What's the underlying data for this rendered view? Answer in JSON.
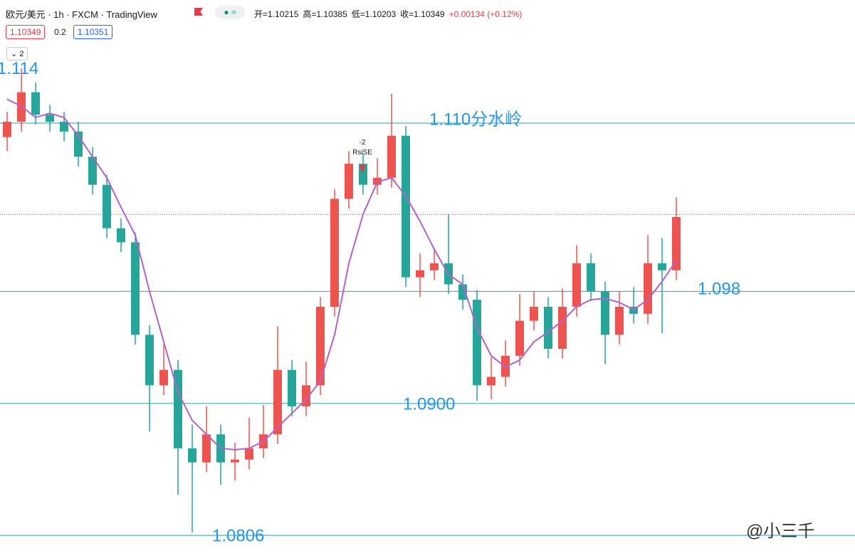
{
  "header": {
    "symbol": "欧元/美元 · 1h · FXCM · TradingView",
    "ohlc": [
      "开=1.10215",
      "高=1.10385",
      "低=1.10203",
      "收=1.10349",
      "+0.00134 (+0.12%)"
    ],
    "bid": "1.10349",
    "spread": "0.2",
    "ask": "1.10351",
    "layers": "2"
  },
  "watermark": "@小三千",
  "chart_data": {
    "type": "candlestick",
    "ylim": [
      1.07898,
      1.11878
    ],
    "up_color": "#ef5350",
    "down_color": "#26a69a",
    "ma_color": "#b660cd",
    "open": [
      1.109,
      1.1101,
      1.1122,
      1.1106,
      1.1101,
      1.1094,
      1.1076,
      1.1056,
      1.1025,
      1.1015,
      1.0949,
      1.0913,
      1.0924,
      1.0868,
      1.0858,
      1.0878,
      1.0858,
      1.086,
      1.0868,
      1.0878,
      1.0924,
      1.0898,
      1.0913,
      1.0969,
      1.1046,
      1.1071,
      1.1056,
      1.1061,
      1.1091,
      1.099,
      1.0995,
      1.1,
      1.0985,
      1.0974,
      1.0913,
      1.0919,
      1.0934,
      1.0959,
      1.0969,
      1.0939,
      1.0969,
      1.1,
      1.098,
      1.0949,
      1.0969,
      1.0964,
      1.1,
      1.0995
    ],
    "high": [
      1.1108,
      1.1139,
      1.1129,
      1.1113,
      1.1108,
      1.1101,
      1.1083,
      1.1063,
      1.1032,
      1.1022,
      1.0956,
      1.0942,
      1.0931,
      1.0885,
      1.0898,
      1.0885,
      1.0872,
      1.089,
      1.0899,
      1.0955,
      1.0931,
      1.093,
      1.0976,
      1.1053,
      1.108,
      1.1078,
      1.1075,
      1.1121,
      1.1098,
      1.1007,
      1.101,
      1.1035,
      1.0992,
      1.0981,
      1.0933,
      1.0945,
      1.0978,
      1.098,
      1.0976,
      1.0982,
      1.1013,
      1.1007,
      1.0987,
      1.098,
      1.0983,
      1.102,
      1.1018,
      1.1047
    ],
    "low": [
      1.108,
      1.1094,
      1.1099,
      1.1094,
      1.1087,
      1.1069,
      1.1049,
      1.1018,
      1.1008,
      1.0942,
      1.088,
      1.0906,
      1.0835,
      1.0808,
      1.0851,
      1.0842,
      1.0845,
      1.0853,
      1.0861,
      1.0871,
      1.0891,
      1.0891,
      1.0906,
      1.0962,
      1.1039,
      1.1049,
      1.1049,
      1.1054,
      1.0983,
      1.0976,
      1.0988,
      1.0978,
      1.0967,
      1.0902,
      1.0903,
      1.0912,
      1.0927,
      1.0952,
      1.0932,
      1.0932,
      1.0962,
      1.0973,
      1.0928,
      1.0942,
      1.0957,
      1.0957,
      1.095,
      1.0988
    ],
    "close": [
      1.1101,
      1.1122,
      1.1106,
      1.1101,
      1.1094,
      1.1076,
      1.1056,
      1.1025,
      1.1015,
      1.0949,
      1.0913,
      1.0924,
      1.0868,
      1.0858,
      1.0878,
      1.0858,
      1.086,
      1.0868,
      1.0878,
      1.0924,
      1.0898,
      1.0913,
      1.0969,
      1.1046,
      1.1071,
      1.1056,
      1.1061,
      1.1091,
      1.099,
      1.0995,
      1.1,
      1.0985,
      1.0974,
      1.0913,
      1.0919,
      1.0934,
      1.0959,
      1.0969,
      1.0939,
      1.0969,
      1.1,
      1.098,
      1.0949,
      1.0969,
      1.0964,
      1.1,
      1.0995,
      1.1033
    ],
    "ma": [
      1.1117,
      1.1112,
      1.1104,
      1.1107,
      1.1104,
      1.1091,
      1.1076,
      1.1061,
      1.104,
      1.102,
      1.098,
      1.0944,
      1.0908,
      1.0888,
      1.0878,
      1.0868,
      1.0867,
      1.0868,
      1.0873,
      1.0883,
      1.0893,
      1.0903,
      1.0916,
      1.0949,
      1.1,
      1.1035,
      1.1058,
      1.1061,
      1.1048,
      1.103,
      1.101,
      1.0992,
      1.0985,
      1.0954,
      1.0934,
      1.0926,
      1.0931,
      1.0944,
      1.0951,
      1.0959,
      1.0969,
      1.0974,
      1.0975,
      1.0972,
      1.0967,
      1.0974,
      1.0987,
      1.1002
    ],
    "last_price": 1.10349,
    "levels": [
      {
        "value": 1.11,
        "label": "1.110分水岭"
      },
      {
        "value": 1.098,
        "label": "1.098"
      },
      {
        "value": 1.09,
        "label": "1.0900"
      },
      {
        "value": 1.0806,
        "label": "1.0806"
      }
    ],
    "annotations": [
      "1.114"
    ],
    "signal": {
      "count": "-2",
      "label": "RsiSE"
    }
  }
}
